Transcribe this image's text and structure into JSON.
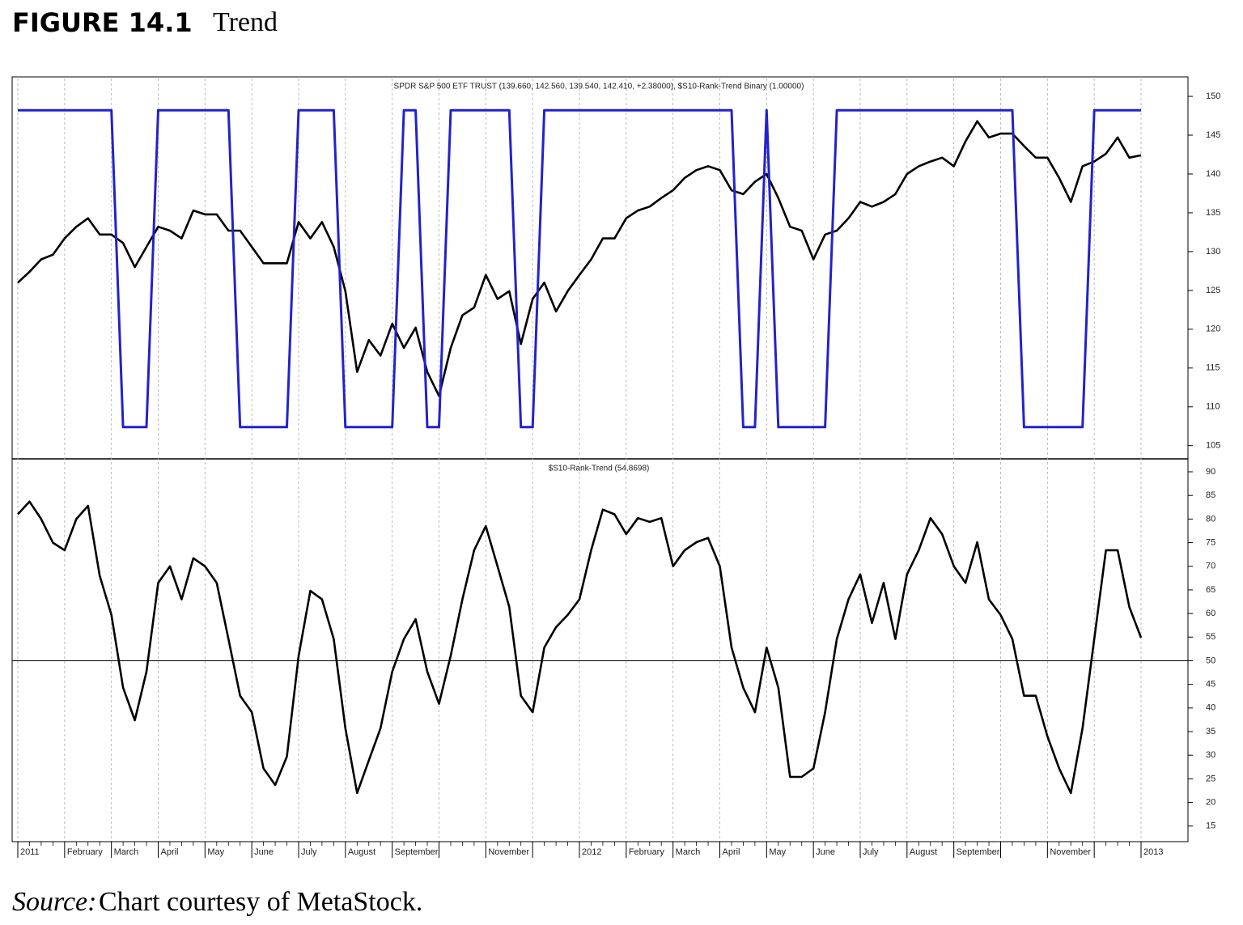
{
  "header": {
    "figure": "FIGURE 14.1",
    "title": "Trend"
  },
  "chart_data": [
    {
      "type": "line",
      "title": "SPDR S&P 500 ETF TRUST (139.660, 142.560, 139.540, 142.410, +2.38000), $S10-Rank-Trend Binary (1.00000)",
      "ylim": [
        103.3,
        152.3
      ],
      "yticks": [
        105,
        110,
        115,
        120,
        125,
        130,
        135,
        140,
        145,
        150
      ],
      "y2lim": [
        -0.1,
        1.1
      ],
      "series": [
        {
          "color": "#000000",
          "values": [
            126,
            127.4,
            129,
            129.6,
            131.7,
            133.2,
            134.3,
            132.2,
            132.2,
            131.1,
            128,
            130.6,
            133.2,
            132.7,
            131.7,
            135.3,
            134.8,
            134.8,
            132.7,
            132.7,
            130.6,
            128.5,
            128.5,
            128.5,
            133.8,
            131.7,
            133.8,
            130.6,
            124.9,
            114.5,
            118.6,
            116.6,
            120.7,
            117.6,
            120.2,
            114.5,
            111.4,
            117.6,
            121.8,
            122.8,
            127,
            123.9,
            124.9,
            118.1,
            123.9,
            126,
            122.3,
            124.9,
            127,
            129,
            131.7,
            131.7,
            134.3,
            135.3,
            135.8,
            136.9,
            137.9,
            139.5,
            140.5,
            141,
            140.5,
            137.9,
            137.4,
            139,
            140,
            136.9,
            133.2,
            132.7,
            129,
            132.2,
            132.7,
            134.3,
            136.4,
            135.8,
            136.4,
            137.4,
            140,
            141,
            141.6,
            142.1,
            141,
            144.2,
            146.8,
            144.7,
            145.2,
            145.2,
            143.6,
            142.1,
            142.1,
            139.5,
            136.4,
            141,
            141.6,
            142.6,
            144.7,
            142.1,
            142.41
          ]
        },
        {
          "color": "#2222cc",
          "axis": "y2",
          "values": [
            1,
            1,
            1,
            1,
            1,
            1,
            1,
            1,
            1,
            0,
            0,
            0,
            1,
            1,
            1,
            1,
            1,
            1,
            1,
            0,
            0,
            0,
            0,
            0,
            1,
            1,
            1,
            1,
            0,
            0,
            0,
            0,
            0,
            1,
            1,
            0,
            0,
            1,
            1,
            1,
            1,
            1,
            1,
            0,
            0,
            1,
            1,
            1,
            1,
            1,
            1,
            1,
            1,
            1,
            1,
            1,
            1,
            1,
            1,
            1,
            1,
            1,
            0,
            0,
            1,
            0,
            0,
            0,
            0,
            0,
            1,
            1,
            1,
            1,
            1,
            1,
            1,
            1,
            1,
            1,
            1,
            1,
            1,
            1,
            1,
            1,
            0,
            0,
            0,
            0,
            0,
            0,
            1,
            1,
            1,
            1,
            1
          ]
        }
      ]
    },
    {
      "type": "line",
      "title": "$S10-Rank-Trend (54.8698)",
      "ylim": [
        11.7,
        92.4
      ],
      "yticks": [
        15,
        20,
        25,
        30,
        35,
        40,
        45,
        50,
        55,
        60,
        65,
        70,
        75,
        80,
        85,
        90
      ],
      "hline": 50,
      "categories": [
        "2011",
        null,
        null,
        null,
        "February",
        null,
        null,
        null,
        "March",
        null,
        null,
        null,
        "April",
        null,
        null,
        null,
        "May",
        null,
        null,
        null,
        "June",
        null,
        null,
        null,
        "July",
        null,
        null,
        null,
        "August",
        null,
        null,
        null,
        "September",
        null,
        null,
        null,
        null,
        null,
        null,
        null,
        "November",
        null,
        null,
        null,
        null,
        null,
        null,
        null,
        "2012",
        null,
        null,
        null,
        "February",
        null,
        null,
        null,
        "March",
        null,
        null,
        null,
        "April",
        null,
        null,
        null,
        "May",
        null,
        null,
        null,
        "June",
        null,
        null,
        null,
        "July",
        null,
        null,
        null,
        "August",
        null,
        null,
        null,
        "September",
        null,
        null,
        null,
        null,
        null,
        null,
        null,
        "November",
        null,
        null,
        null,
        null,
        null,
        null,
        null,
        "2013"
      ],
      "series": [
        {
          "color": "#000000",
          "values": [
            81,
            83.7,
            80,
            75,
            73.4,
            80,
            82.8,
            68,
            59.7,
            44.3,
            37.4,
            47.7,
            66.5,
            70,
            63,
            71.7,
            70,
            66.5,
            54.6,
            42.6,
            39.1,
            27.2,
            23.7,
            29.7,
            51,
            64.8,
            63,
            54.6,
            35.7,
            22,
            28.9,
            35.7,
            47.7,
            54.6,
            58.8,
            47.7,
            40.9,
            51.1,
            63,
            73.4,
            78.5,
            70,
            61.4,
            42.6,
            39.1,
            52.8,
            57.1,
            59.7,
            63,
            73.4,
            82,
            81,
            76.8,
            80.2,
            79.4,
            80.2,
            70,
            73.4,
            75.1,
            76,
            70,
            52.8,
            44.3,
            39.1,
            52.8,
            44.3,
            25.4,
            25.4,
            27.2,
            39.1,
            54.6,
            63,
            68.3,
            58,
            66.5,
            54.6,
            68.3,
            73.4,
            80.2,
            76.8,
            70,
            66.5,
            75.1,
            63,
            59.7,
            54.6,
            42.6,
            42.6,
            34,
            27.2,
            22,
            35.7,
            54.6,
            73.4,
            73.4,
            61.4,
            54.87
          ]
        }
      ]
    }
  ],
  "source": {
    "label": "Source:",
    "text": "Chart courtesy of MetaStock."
  }
}
